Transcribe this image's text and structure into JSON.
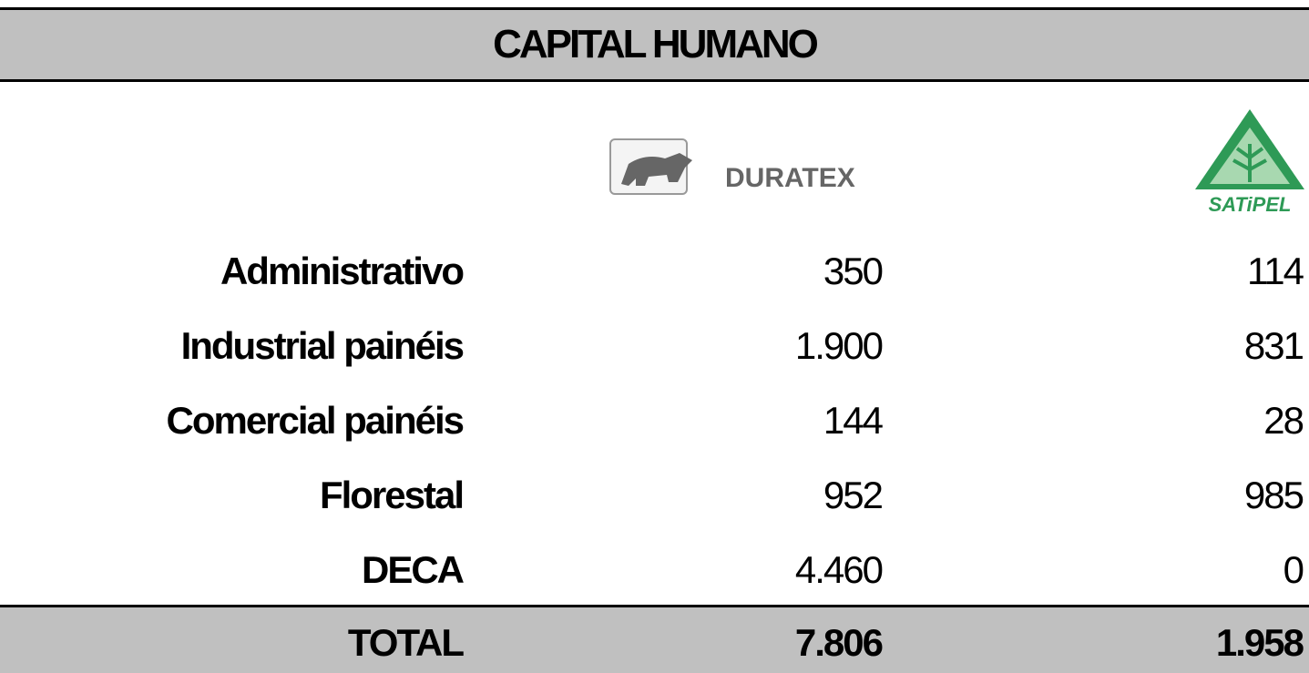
{
  "header": {
    "title": "CAPITAL HUMANO"
  },
  "table": {
    "columns": [
      "DURATEX",
      "SATiPEL"
    ],
    "rows": [
      [
        "Administrativo",
        "350",
        "114"
      ],
      [
        "Industrial painéis",
        "1.900",
        "831"
      ],
      [
        "Comercial painéis",
        "144",
        "28"
      ],
      [
        "Florestal",
        "952",
        "985"
      ],
      [
        "DECA",
        "4.460",
        "0"
      ]
    ],
    "total": [
      "TOTAL",
      "7.806",
      "1.958"
    ]
  }
}
